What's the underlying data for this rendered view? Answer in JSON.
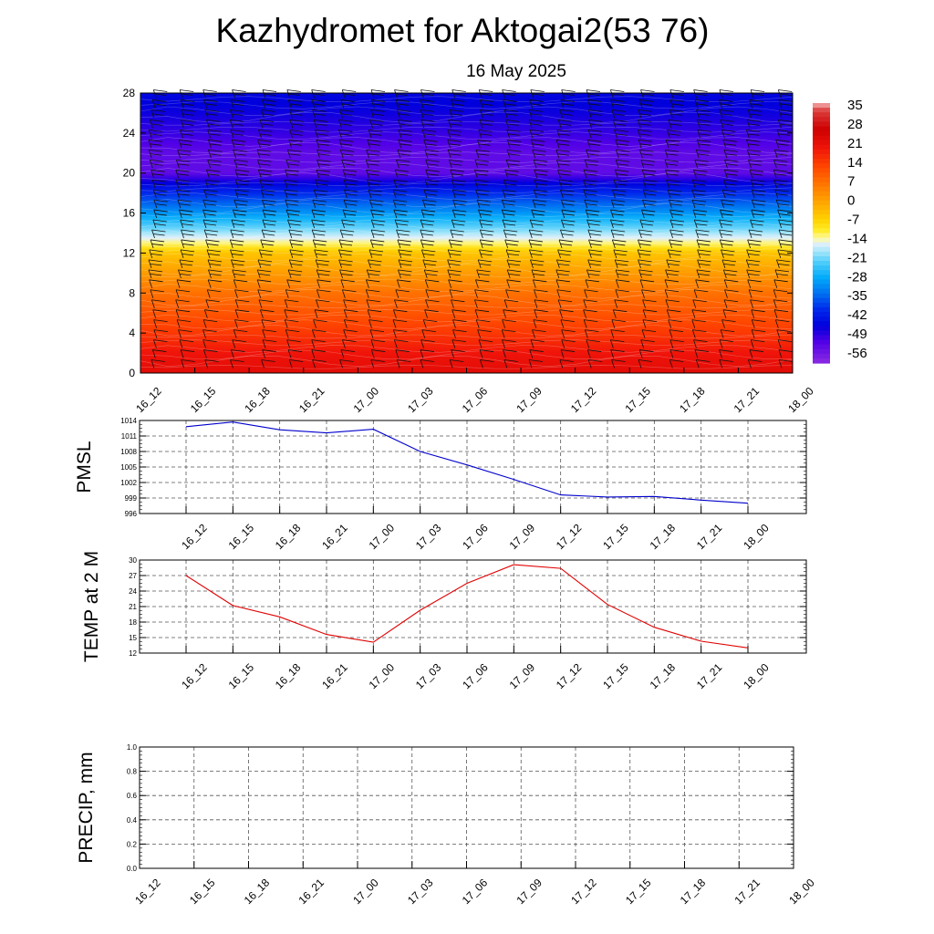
{
  "title": "Kazhydromet for Aktogai2(53 76)",
  "subtitle": "16 May 2025",
  "chart_data": [
    {
      "type": "heatmap",
      "name": "upper-air-temperature",
      "x_ticks": [
        "16_12",
        "16_15",
        "16_18",
        "16_21",
        "17_00",
        "17_03",
        "17_06",
        "17_09",
        "17_12",
        "17_15",
        "17_18",
        "17_21",
        "18_00"
      ],
      "y_ticks": [
        0,
        4,
        8,
        12,
        16,
        20,
        24,
        28
      ],
      "ylim": [
        0,
        28
      ],
      "colorbar": {
        "labels": [
          "35",
          "28",
          "21",
          "14",
          "7",
          "0",
          "-7",
          "-14",
          "-21",
          "-28",
          "-35",
          "-42",
          "-49",
          "-56"
        ],
        "range": [
          -60,
          38
        ]
      },
      "temperature_profile": {
        "levels": [
          0,
          2,
          4,
          6,
          8,
          10,
          12,
          13,
          14,
          16,
          18,
          19,
          20,
          22,
          24,
          26,
          28
        ],
        "values": [
          24,
          21,
          16,
          12,
          8,
          2,
          -4,
          -12,
          -18,
          -30,
          -40,
          -46,
          -54,
          -54,
          -50,
          -47,
          -45
        ]
      },
      "wind_barbs": true
    },
    {
      "type": "line",
      "name": "PMSL",
      "ylabel": "PMSL",
      "x": [
        "16_12",
        "16_15",
        "16_18",
        "16_21",
        "17_00",
        "17_03",
        "17_06",
        "17_09",
        "17_12",
        "17_15",
        "17_18",
        "17_21",
        "18_00"
      ],
      "values": [
        1012.8,
        1013.7,
        1012.2,
        1011.6,
        1012.3,
        1008.0,
        1005.4,
        1002.6,
        999.6,
        999.2,
        999.3,
        998.6,
        998.0
      ],
      "ylim": [
        996,
        1014
      ],
      "y_ticks": [
        "996",
        "999",
        "1002",
        "1005",
        "1008",
        "1011",
        "1014"
      ],
      "color": "#0000cc"
    },
    {
      "type": "line",
      "name": "TEMP at 2 M",
      "ylabel": "TEMP at 2 M",
      "x": [
        "16_12",
        "16_15",
        "16_18",
        "16_21",
        "17_00",
        "17_03",
        "17_06",
        "17_09",
        "17_12",
        "17_15",
        "17_18",
        "17_21",
        "18_00"
      ],
      "values": [
        27.0,
        21.2,
        19.0,
        15.6,
        14.1,
        20.3,
        25.5,
        29.1,
        28.4,
        21.4,
        17.0,
        14.3,
        13.0
      ],
      "ylim": [
        12,
        30
      ],
      "y_ticks": [
        "12",
        "15",
        "18",
        "21",
        "24",
        "27",
        "30"
      ],
      "color": "#e00000"
    },
    {
      "type": "line",
      "name": "PRECIP, mm",
      "ylabel": "PRECIP, mm",
      "x": [
        "16_12",
        "16_15",
        "16_18",
        "16_21",
        "17_00",
        "17_03",
        "17_06",
        "17_09",
        "17_12",
        "17_15",
        "17_18",
        "17_21",
        "18_00"
      ],
      "values": [
        0,
        0,
        0,
        0,
        0,
        0,
        0,
        0,
        0,
        0,
        0,
        0,
        0
      ],
      "ylim": [
        0,
        1
      ],
      "y_ticks": [
        "0.0",
        "0.2",
        "0.4",
        "0.6",
        "0.8",
        "1.0"
      ],
      "color": "#006400"
    }
  ]
}
